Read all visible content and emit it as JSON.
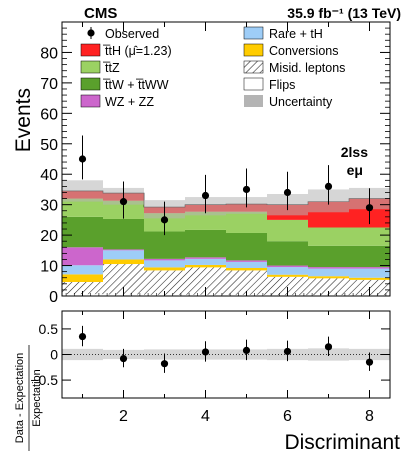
{
  "chart_data": [
    {
      "type": "bar",
      "stacked": true,
      "header": {
        "experiment": "CMS",
        "luminosity": "35.9 fb⁻¹ (13 TeV)"
      },
      "category_label": {
        "line1": "2lss",
        "line2": "eμ"
      },
      "ylabel": "Events",
      "ylim": [
        0,
        90
      ],
      "xlim": [
        0.5,
        8.5
      ],
      "x_ticks": [
        2,
        4,
        6,
        8
      ],
      "y_ticks": [
        0,
        10,
        20,
        30,
        40,
        50,
        60,
        70,
        80
      ],
      "bins": [
        1,
        2,
        3,
        4,
        5,
        6,
        7,
        8
      ],
      "series": [
        {
          "name": "Flips",
          "color": "#ffffff",
          "hatch": false,
          "values": [
            0.6,
            0.5,
            0.4,
            0.4,
            0.4,
            0.3,
            0.3,
            0.3
          ]
        },
        {
          "name": "Misid. leptons",
          "color": "#ffffff",
          "hatch": true,
          "values": [
            4.0,
            10.0,
            8.0,
            9.0,
            8.0,
            6.0,
            5.5,
            5.0
          ]
        },
        {
          "name": "Conversions",
          "color": "#ffcc00",
          "values": [
            2.5,
            1.5,
            1.0,
            0.8,
            0.8,
            0.7,
            0.7,
            0.7
          ]
        },
        {
          "name": "Rare + tH",
          "color": "#9ecdf7",
          "values": [
            3.0,
            3.0,
            2.3,
            2.0,
            2.0,
            2.5,
            2.5,
            3.0
          ]
        },
        {
          "name": "WZ + ZZ",
          "color": "#cc66cc",
          "values": [
            5.9,
            0.3,
            0.5,
            0.5,
            0.5,
            0.5,
            0.5,
            0.5
          ]
        },
        {
          "name": "t̅tW + t̅tWW",
          "color": "#5aa02c",
          "values": [
            10.0,
            10.0,
            9.0,
            9.0,
            9.0,
            8.0,
            7.0,
            7.0
          ]
        },
        {
          "name": "t̅tZ",
          "color": "#9bd163",
          "values": [
            6.0,
            6.0,
            6.0,
            6.0,
            7.0,
            7.0,
            6.0,
            6.0
          ]
        },
        {
          "name": "t̅tH (μ̂=1.23)",
          "color": "#ff2222",
          "values": [
            2.5,
            2.5,
            2.0,
            2.3,
            2.5,
            5.0,
            8.5,
            9.5
          ]
        }
      ],
      "uncertainty": {
        "name": "Uncertainty",
        "color": "#b4b4b4",
        "band_low": [
          31.0,
          30.0,
          25.5,
          26.5,
          27.0,
          26.5,
          27.5,
          28.5
        ],
        "band_high": [
          38.0,
          35.5,
          31.5,
          32.5,
          32.5,
          33.5,
          35.0,
          35.5
        ]
      },
      "observed": {
        "name": "Observed",
        "values": [
          45,
          31,
          25,
          33,
          35,
          34,
          36,
          29
        ],
        "err_low": [
          6.7,
          5.6,
          5.0,
          5.8,
          5.9,
          5.8,
          6.0,
          5.4
        ],
        "err_high": [
          7.7,
          6.6,
          6.0,
          6.8,
          6.9,
          6.8,
          7.0,
          6.4
        ]
      }
    },
    {
      "type": "scatter",
      "ylabel_line1": "Data - Expectation",
      "ylabel_line2": "Expectation",
      "xlabel": "Discriminant",
      "ylim": [
        -0.85,
        0.85
      ],
      "xlim": [
        0.5,
        8.5
      ],
      "x_ticks": [
        2,
        4,
        6,
        8
      ],
      "y_ticks": [
        -0.5,
        0,
        0.5
      ],
      "x": [
        1,
        2,
        3,
        4,
        5,
        6,
        7,
        8
      ],
      "values": [
        0.35,
        -0.08,
        -0.18,
        0.05,
        0.08,
        0.06,
        0.15,
        -0.15
      ],
      "err_low": [
        0.19,
        0.17,
        0.18,
        0.19,
        0.19,
        0.19,
        0.18,
        0.17
      ],
      "err_high": [
        0.21,
        0.19,
        0.2,
        0.21,
        0.21,
        0.21,
        0.2,
        0.19
      ],
      "band_halfwidth": [
        0.11,
        0.09,
        0.1,
        0.1,
        0.1,
        0.11,
        0.12,
        0.11
      ]
    }
  ]
}
